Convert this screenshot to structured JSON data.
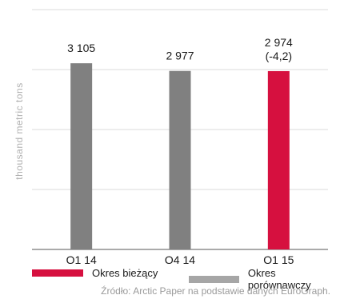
{
  "chart_data": {
    "type": "bar",
    "title": "",
    "xlabel": "",
    "ylabel": "thousand metric tons",
    "ylim": [
      0,
      4000
    ],
    "grid": true,
    "categories": [
      "Q1 14",
      "Q4 14",
      "Q1 15"
    ],
    "values": [
      3105,
      2977,
      2974
    ],
    "data_labels": [
      "3 105",
      "2 977",
      "2 974\n(-4,2)"
    ],
    "bar_colors": [
      "#808080",
      "#808080",
      "#d6103f"
    ],
    "legend": [
      {
        "label": "Okres bieżący",
        "color": "#d6103f"
      },
      {
        "label": "Okres porównawczy",
        "color": "#a6a6a6"
      }
    ],
    "legend_position": "bottom"
  },
  "source": "Źródło: Arctic Paper na podstawie danych EuroGraph."
}
